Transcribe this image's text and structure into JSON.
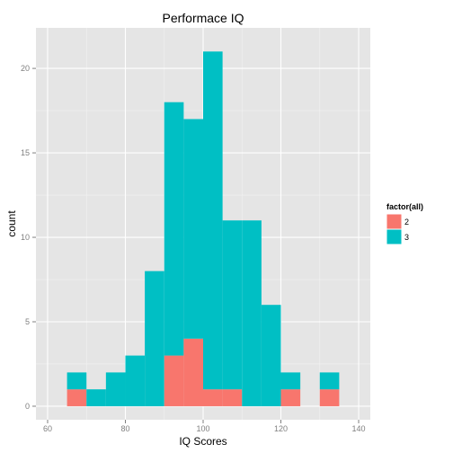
{
  "chart_data": {
    "type": "bar",
    "subtype": "stacked-histogram",
    "title": "Performace IQ",
    "xlabel": "IQ Scores",
    "ylabel": "count",
    "xlim": [
      57,
      143
    ],
    "ylim": [
      -0.8,
      22.4
    ],
    "x_ticks": [
      60,
      80,
      100,
      120,
      140
    ],
    "y_ticks": [
      0,
      5,
      10,
      15,
      20
    ],
    "bin_width": 5,
    "bin_starts": [
      65,
      70,
      75,
      80,
      85,
      90,
      95,
      100,
      105,
      110,
      115,
      120,
      125,
      130
    ],
    "series": [
      {
        "name": "2",
        "color": "#F8766D",
        "values": [
          1,
          0,
          0,
          0,
          0,
          3,
          4,
          1,
          1,
          0,
          0,
          1,
          0,
          1
        ]
      },
      {
        "name": "3",
        "color": "#00BFC4",
        "values": [
          1,
          1,
          2,
          3,
          8,
          15,
          13,
          20,
          10,
          11,
          6,
          1,
          0,
          1
        ]
      }
    ],
    "legend": {
      "title": "factor(all)",
      "position": "right"
    },
    "grid": true,
    "panel_background": "#E5E5E5",
    "grid_color": "#FFFFFF"
  }
}
